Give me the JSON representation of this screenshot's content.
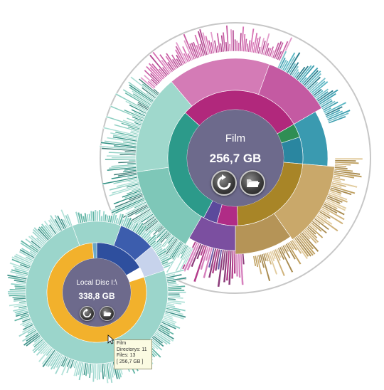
{
  "zoom_view": {
    "folder_name": "Film",
    "folder_size": "256,7 GB",
    "refresh_button": "refresh-icon",
    "open_button": "folder-open-icon"
  },
  "overview": {
    "folder_name": "Local Disc I:\\",
    "folder_size": "338,8 GB",
    "refresh_button": "refresh-icon",
    "open_button": "folder-open-icon"
  },
  "tooltip": {
    "name": "Film",
    "directories": "Directorys: 11",
    "files": "Files: 13",
    "size": "[ 256,7 GB ]"
  },
  "colors": {
    "center_disc": "#6d6a8c",
    "teal": "#2a9a8c",
    "magenta": "#b12f82",
    "gold": "#b08f2e",
    "orange_ring": "#f2b12c",
    "blue": "#3c5dad"
  }
}
